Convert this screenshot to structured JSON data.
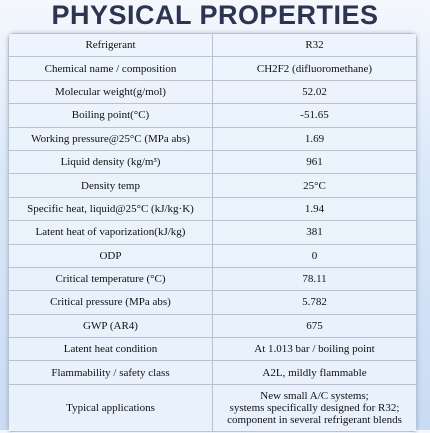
{
  "header": {
    "title": "PHYSICAL PROPERTIES"
  },
  "table": {
    "rows": [
      [
        "Refrigerant",
        "R32"
      ],
      [
        "Chemical name / composition",
        "CH2F2 (difluoromethane)"
      ],
      [
        "Molecular weight(g/mol)",
        "52.02"
      ],
      [
        "Boiling point(°C)",
        "-51.65"
      ],
      [
        "Working pressure@25°C (MPa abs)",
        "1.69"
      ],
      [
        "Liquid density (kg/m³)",
        "961"
      ],
      [
        "Density temp",
        "25°C"
      ],
      [
        "Specific heat, liquid@25°C (kJ/kg·K)",
        "1.94"
      ],
      [
        "Latent heat of vaporization(kJ/kg)",
        "381"
      ],
      [
        "ODP",
        "0"
      ],
      [
        "Critical temperature (°C)",
        "78.11"
      ],
      [
        "Critical pressure (MPa abs)",
        "5.782"
      ],
      [
        "GWP (AR4)",
        "675"
      ],
      [
        "Latent heat condition",
        "At 1.013 bar / boiling point"
      ],
      [
        "Flammability / safety class",
        "A2L, mildly flammable"
      ],
      [
        "Typical applications",
        [
          "New small A/C systems;",
          "systems specifically designed for R32;",
          "component in several refrigerant blends"
        ]
      ]
    ]
  }
}
